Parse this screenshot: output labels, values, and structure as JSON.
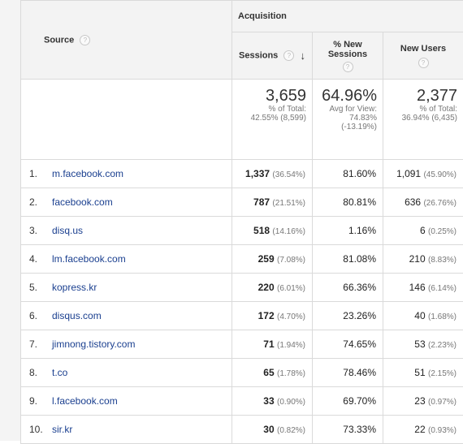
{
  "header": {
    "source_label": "Source",
    "group_label": "Acquisition",
    "sessions_label": "Sessions",
    "pct_new_label_1": "% New",
    "pct_new_label_2": "Sessions",
    "new_users_label": "New Users",
    "help_glyph": "?",
    "sort_glyph": "↓"
  },
  "totals": {
    "sessions": "3,659",
    "sessions_sub1": "% of Total:",
    "sessions_sub2": "42.55% (8,599)",
    "pct_new": "64.96%",
    "pct_new_sub1": "Avg for View:",
    "pct_new_sub2": "74.83%",
    "pct_new_sub3": "(-13.19%)",
    "new_users": "2,377",
    "new_users_sub1": "% of Total:",
    "new_users_sub2": "36.94% (6,435)"
  },
  "rows": [
    {
      "idx": "1.",
      "source": "m.facebook.com",
      "sessions": "1,337",
      "sessions_pct": "(36.54%)",
      "pct_new": "81.60%",
      "new_users": "1,091",
      "new_users_pct": "(45.90%)"
    },
    {
      "idx": "2.",
      "source": "facebook.com",
      "sessions": "787",
      "sessions_pct": "(21.51%)",
      "pct_new": "80.81%",
      "new_users": "636",
      "new_users_pct": "(26.76%)"
    },
    {
      "idx": "3.",
      "source": "disq.us",
      "sessions": "518",
      "sessions_pct": "(14.16%)",
      "pct_new": "1.16%",
      "new_users": "6",
      "new_users_pct": "(0.25%)"
    },
    {
      "idx": "4.",
      "source": "lm.facebook.com",
      "sessions": "259",
      "sessions_pct": "(7.08%)",
      "pct_new": "81.08%",
      "new_users": "210",
      "new_users_pct": "(8.83%)"
    },
    {
      "idx": "5.",
      "source": "kopress.kr",
      "sessions": "220",
      "sessions_pct": "(6.01%)",
      "pct_new": "66.36%",
      "new_users": "146",
      "new_users_pct": "(6.14%)"
    },
    {
      "idx": "6.",
      "source": "disqus.com",
      "sessions": "172",
      "sessions_pct": "(4.70%)",
      "pct_new": "23.26%",
      "new_users": "40",
      "new_users_pct": "(1.68%)"
    },
    {
      "idx": "7.",
      "source": "jimnong.tistory.com",
      "sessions": "71",
      "sessions_pct": "(1.94%)",
      "pct_new": "74.65%",
      "new_users": "53",
      "new_users_pct": "(2.23%)"
    },
    {
      "idx": "8.",
      "source": "t.co",
      "sessions": "65",
      "sessions_pct": "(1.78%)",
      "pct_new": "78.46%",
      "new_users": "51",
      "new_users_pct": "(2.15%)"
    },
    {
      "idx": "9.",
      "source": "l.facebook.com",
      "sessions": "33",
      "sessions_pct": "(0.90%)",
      "pct_new": "69.70%",
      "new_users": "23",
      "new_users_pct": "(0.97%)"
    },
    {
      "idx": "10.",
      "source": "sir.kr",
      "sessions": "30",
      "sessions_pct": "(0.82%)",
      "pct_new": "73.33%",
      "new_users": "22",
      "new_users_pct": "(0.93%)"
    }
  ]
}
